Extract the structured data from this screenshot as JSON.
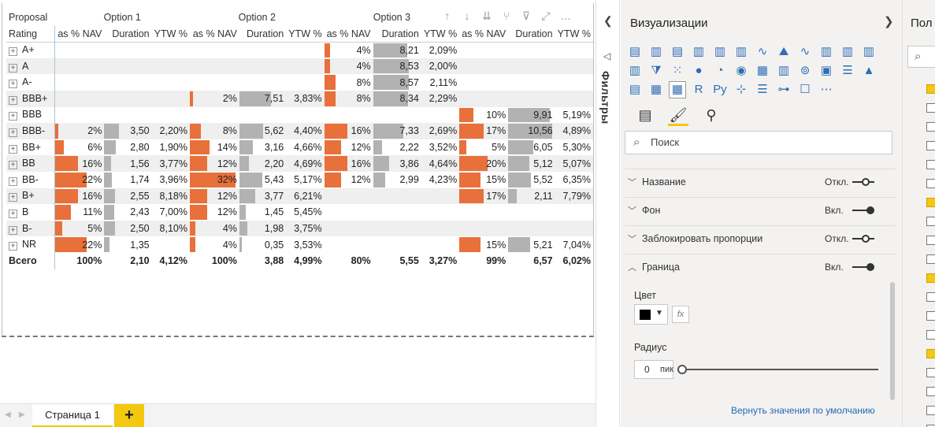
{
  "visual_toolbar": [
    "↑",
    "↓",
    "⇊",
    "⑂",
    "⊽",
    "⤢",
    "…"
  ],
  "matrix": {
    "header_row1": {
      "proposal": "Proposal",
      "groups": [
        "Option 1",
        "Option 2",
        "Option 3",
        ""
      ]
    },
    "header_row2": {
      "rating": "Rating",
      "cols": [
        "as % NAV",
        "Duration",
        "YTW %",
        "as % NAV",
        "Duration",
        "YTW %",
        "as % NAV",
        "Duration",
        "YTW %",
        "as % NAV",
        "Duration",
        "YTW %"
      ]
    },
    "rows": [
      {
        "label": "A+",
        "values": [
          "",
          "",
          "",
          "",
          "",
          "",
          "4%",
          "8,21",
          "2,09%",
          "",
          "",
          ""
        ],
        "nav": [
          0,
          0,
          4,
          0
        ],
        "dur": [
          0,
          0,
          8.21,
          0
        ]
      },
      {
        "label": "A",
        "values": [
          "",
          "",
          "",
          "",
          "",
          "",
          "4%",
          "8,53",
          "2,00%",
          "",
          "",
          ""
        ],
        "nav": [
          0,
          0,
          4,
          0
        ],
        "dur": [
          0,
          0,
          8.53,
          0
        ]
      },
      {
        "label": "A-",
        "values": [
          "",
          "",
          "",
          "",
          "",
          "",
          "8%",
          "8,57",
          "2,11%",
          "",
          "",
          ""
        ],
        "nav": [
          0,
          0,
          8,
          0
        ],
        "dur": [
          0,
          0,
          8.57,
          0
        ]
      },
      {
        "label": "BBB+",
        "values": [
          "",
          "",
          "",
          "2%",
          "7,51",
          "3,83%",
          "8%",
          "8,34",
          "2,29%",
          "",
          "",
          ""
        ],
        "nav": [
          0,
          2,
          8,
          0
        ],
        "dur": [
          0,
          7.51,
          8.34,
          0
        ]
      },
      {
        "label": "BBB",
        "values": [
          "",
          "",
          "",
          "",
          "",
          "",
          "",
          "",
          "",
          "10%",
          "9,91",
          "5,19%"
        ],
        "nav": [
          0,
          0,
          0,
          10
        ],
        "dur": [
          0,
          0,
          0,
          9.91
        ]
      },
      {
        "label": "BBB-",
        "values": [
          "2%",
          "3,50",
          "2,20%",
          "8%",
          "5,62",
          "4,40%",
          "16%",
          "7,33",
          "2,69%",
          "17%",
          "10,56",
          "4,89%"
        ],
        "nav": [
          2,
          8,
          16,
          17
        ],
        "dur": [
          3.5,
          5.62,
          7.33,
          10.56
        ]
      },
      {
        "label": "BB+",
        "values": [
          "6%",
          "2,80",
          "1,90%",
          "14%",
          "3,16",
          "4,66%",
          "12%",
          "2,22",
          "3,52%",
          "5%",
          "6,05",
          "5,30%"
        ],
        "nav": [
          6,
          14,
          12,
          5
        ],
        "dur": [
          2.8,
          3.16,
          2.22,
          6.05
        ]
      },
      {
        "label": "BB",
        "values": [
          "16%",
          "1,56",
          "3,77%",
          "12%",
          "2,20",
          "4,69%",
          "16%",
          "3,86",
          "4,64%",
          "20%",
          "5,12",
          "5,07%"
        ],
        "nav": [
          16,
          12,
          16,
          20
        ],
        "dur": [
          1.56,
          2.2,
          3.86,
          5.12
        ]
      },
      {
        "label": "BB-",
        "values": [
          "22%",
          "1,74",
          "3,96%",
          "32%",
          "5,43",
          "5,17%",
          "12%",
          "2,99",
          "4,23%",
          "15%",
          "5,52",
          "6,35%"
        ],
        "nav": [
          22,
          32,
          12,
          15
        ],
        "dur": [
          1.74,
          5.43,
          2.99,
          5.52
        ]
      },
      {
        "label": "B+",
        "values": [
          "16%",
          "2,55",
          "8,18%",
          "12%",
          "3,77",
          "6,21%",
          "",
          "",
          "",
          "17%",
          "2,11",
          "7,79%"
        ],
        "nav": [
          16,
          12,
          0,
          17
        ],
        "dur": [
          2.55,
          3.77,
          0,
          2.11
        ]
      },
      {
        "label": "B",
        "values": [
          "11%",
          "2,43",
          "7,00%",
          "12%",
          "1,45",
          "5,45%",
          "",
          "",
          "",
          "",
          "",
          ""
        ],
        "nav": [
          11,
          12,
          0,
          0
        ],
        "dur": [
          2.43,
          1.45,
          0,
          0
        ]
      },
      {
        "label": "B-",
        "values": [
          "5%",
          "2,50",
          "8,10%",
          "4%",
          "1,98",
          "3,75%",
          "",
          "",
          "",
          "",
          "",
          ""
        ],
        "nav": [
          5,
          4,
          0,
          0
        ],
        "dur": [
          2.5,
          1.98,
          0,
          0
        ]
      },
      {
        "label": "NR",
        "values": [
          "22%",
          "1,35",
          "",
          "4%",
          "0,35",
          "3,53%",
          "",
          "",
          "",
          "15%",
          "5,21",
          "7,04%"
        ],
        "nav": [
          22,
          4,
          0,
          15
        ],
        "dur": [
          1.35,
          0.35,
          0,
          5.21
        ]
      }
    ],
    "total": {
      "label": "Всего",
      "values": [
        "100%",
        "2,10",
        "4,12%",
        "100%",
        "3,88",
        "4,99%",
        "80%",
        "5,55",
        "3,27%",
        "99%",
        "6,57",
        "6,02%"
      ]
    }
  },
  "pages": {
    "tab_label": "Страница 1",
    "add": "+"
  },
  "filters": {
    "label": "Фильтры"
  },
  "viz_pane": {
    "title": "Визуализации",
    "icons": [
      "▤",
      "▥",
      "▤",
      "▥",
      "▥",
      "▥",
      "∿",
      "⛰",
      "∿",
      "▥",
      "▥",
      "▥",
      "▥",
      "⧩",
      "⁙",
      "●",
      "◔",
      "◉",
      "▦",
      "▥",
      "⊚",
      "▣",
      "☰",
      "▲",
      "▤",
      "▦",
      "▦",
      "R",
      "Py",
      "⊹",
      "☰",
      "⊶",
      "☐",
      "⋯"
    ],
    "tabs": [
      "fields-tab",
      "format-tab",
      "analytics-tab"
    ],
    "search_placeholder": "Поиск",
    "sections": [
      {
        "name": "Название",
        "state": "Откл.",
        "on": false,
        "expanded": false
      },
      {
        "name": "Фон",
        "state": "Вкл.",
        "on": true,
        "expanded": false
      },
      {
        "name": "Заблокировать пропорции",
        "state": "Откл.",
        "on": false,
        "expanded": false
      },
      {
        "name": "Граница",
        "state": "Вкл.",
        "on": true,
        "expanded": true
      }
    ],
    "color_label": "Цвет",
    "border_color": "#000000",
    "fx": "fx",
    "radius_label": "Радиус",
    "radius_value": "0",
    "radius_unit": "пик",
    "reset": "Вернуть значения по умолчанию"
  },
  "fields_pane": {
    "title": "Пол",
    "checkboxes": [
      true,
      false,
      false,
      false,
      false,
      false,
      true,
      false,
      false,
      false,
      true,
      false,
      false,
      false,
      true,
      false,
      false,
      false,
      false
    ]
  },
  "colors": {
    "accent": "#f2c811",
    "bar_nav": "#e8703a",
    "bar_duration": "#b2b2b2",
    "link": "#2467b6"
  }
}
